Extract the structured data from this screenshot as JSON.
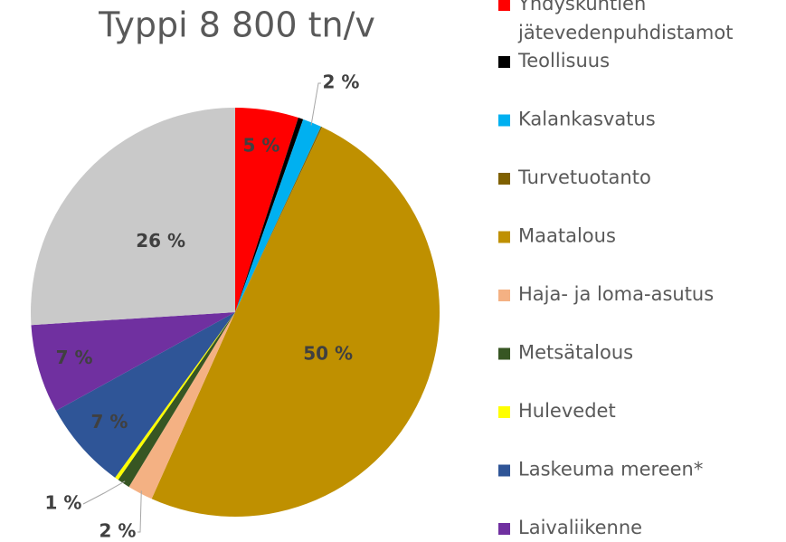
{
  "chart_data": {
    "type": "pie",
    "title": "Typpi 8 800 tn/v",
    "categories": [
      "Yhdyskuntien jätevedenpuhdistamot",
      "Teollisuus",
      "Kalankasvatus",
      "Turvetuotanto",
      "Maatalous",
      "Haja- ja loma-asutus",
      "Metsätalous",
      "Hulevedet",
      "Laskeuma mereen*",
      "Laivaliikenne",
      null
    ],
    "values": [
      5,
      0.4,
      1.5,
      0.1,
      49.7,
      2,
      1,
      0.3,
      7,
      7,
      26
    ],
    "value_labels": [
      "5 %",
      null,
      "2 %",
      null,
      "50 %",
      "2 %",
      "1 %",
      null,
      "7 %",
      "7 %",
      "26 %"
    ],
    "colors": [
      "#ff0000",
      "#000000",
      "#00b0f0",
      "#7f6000",
      "#bf9000",
      "#f4b183",
      "#375623",
      "#ffff00",
      "#2f5597",
      "#7030a0",
      "#c9c9c9"
    ],
    "legend": "right"
  }
}
